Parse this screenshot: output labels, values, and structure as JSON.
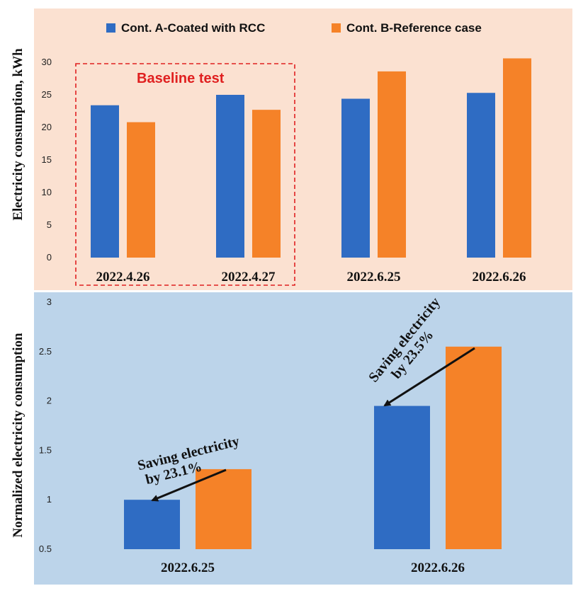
{
  "colors": {
    "top_panel_bg": "#fbe1d1",
    "bottom_panel_bg": "#bcd4ea",
    "series_a": "#2f6cc3",
    "series_b": "#f58228",
    "baseline_box": "#e02020"
  },
  "legend": {
    "series_a_label": "Cont. A-Coated with RCC",
    "series_b_label": "Cont. B-Reference case"
  },
  "chart_data": [
    {
      "type": "bar",
      "ylabel": "Electricity consumption, kWh",
      "ylim": [
        0,
        30
      ],
      "yticks": [
        0,
        5,
        10,
        15,
        20,
        25,
        30
      ],
      "categories": [
        "2022.4.26",
        "2022.4.27",
        "2022.6.25",
        "2022.6.26"
      ],
      "series": [
        {
          "name": "Cont. A-Coated with RCC",
          "values": [
            23.4,
            25.0,
            24.4,
            25.3
          ]
        },
        {
          "name": "Cont. B-Reference case",
          "values": [
            20.8,
            22.7,
            28.6,
            30.6
          ]
        }
      ],
      "annotations": [
        {
          "text": "Baseline test",
          "categories": [
            "2022.4.26",
            "2022.4.27"
          ]
        }
      ],
      "legend_position": "top",
      "grid": false
    },
    {
      "type": "bar",
      "ylabel": "Normalized electricity consumption",
      "ylim": [
        0.5,
        3
      ],
      "yticks": [
        "0.5",
        "1",
        "1.5",
        "2",
        "2.5",
        "3"
      ],
      "categories": [
        "2022.6.25",
        "2022.6.26"
      ],
      "series": [
        {
          "name": "Cont. A-Coated with RCC",
          "values": [
            1.0,
            1.95
          ]
        },
        {
          "name": "Cont. B-Reference case",
          "values": [
            1.31,
            2.55
          ]
        }
      ],
      "annotations": [
        {
          "category": "2022.6.25",
          "line1": "Saving electricity",
          "line2": "by 23.1%"
        },
        {
          "category": "2022.6.26",
          "line1": "Saving electricity",
          "line2": "by 23.5%"
        }
      ],
      "grid": false
    }
  ]
}
